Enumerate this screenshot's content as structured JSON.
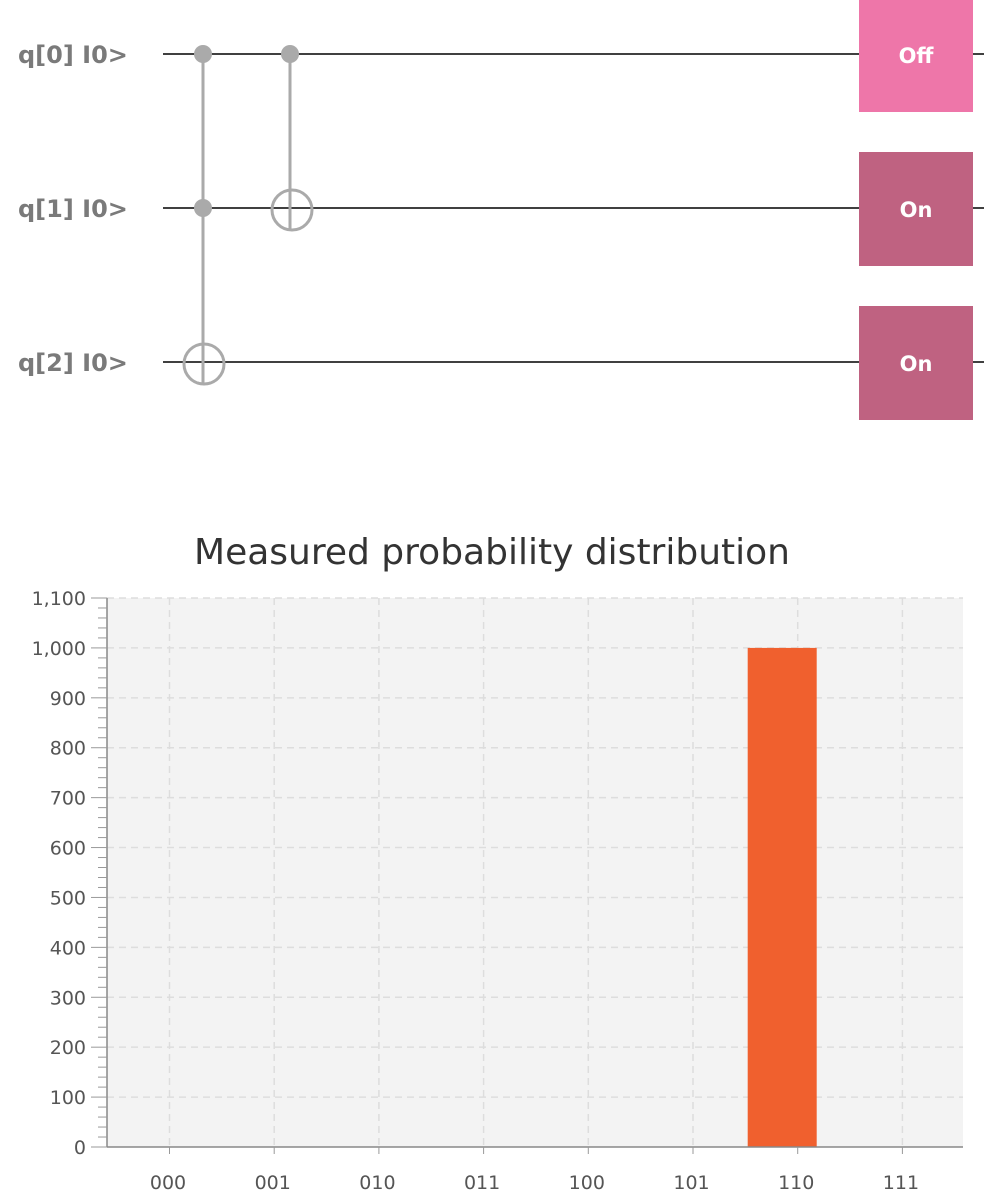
{
  "circuit": {
    "qubits": [
      {
        "label": "q[0] I0>",
        "measure": "Off"
      },
      {
        "label": "q[1] I0>",
        "measure": "On"
      },
      {
        "label": "q[2] I0>",
        "measure": "On"
      }
    ],
    "gates": [
      {
        "type": "toffoli",
        "controls": [
          0,
          1
        ],
        "target": 2
      },
      {
        "type": "cnot",
        "controls": [
          0
        ],
        "target": 1
      }
    ],
    "colors": {
      "measure_off": "#ee76a9",
      "measure_on": "#bf6281",
      "gate": "#aaaaaa",
      "wire": "#000000"
    }
  },
  "chart_data": {
    "type": "bar",
    "title": "Measured probability distribution",
    "categories": [
      "000",
      "001",
      "010",
      "011",
      "100",
      "101",
      "110",
      "111"
    ],
    "values": [
      0,
      0,
      0,
      0,
      0,
      0,
      1000,
      0
    ],
    "ylim": [
      0,
      1100
    ],
    "yticks": [
      0,
      100,
      200,
      300,
      400,
      500,
      600,
      700,
      800,
      900,
      1000,
      1100
    ],
    "ytick_labels": [
      "0",
      "100",
      "200",
      "300",
      "400",
      "500",
      "600",
      "700",
      "800",
      "900",
      "1,000",
      "1,100"
    ],
    "xlabel": "",
    "ylabel": "",
    "grid": true,
    "bar_color": "#f0602e",
    "background": "#f3f3f3"
  }
}
